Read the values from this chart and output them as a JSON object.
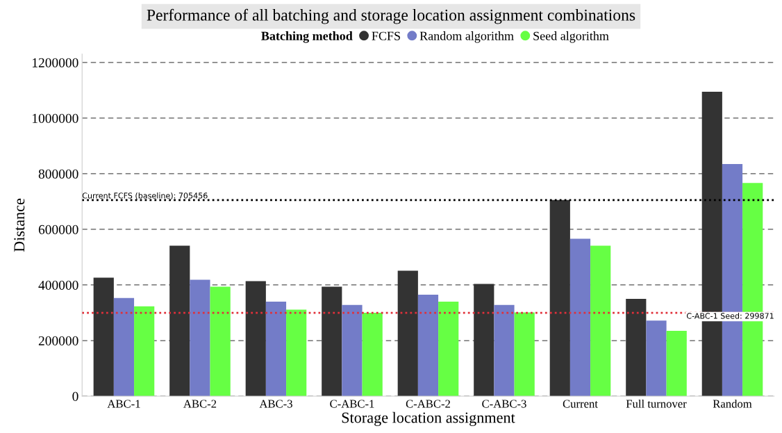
{
  "chart_data": {
    "type": "bar",
    "title": "Performance of all batching and storage location assignment combinations",
    "xlabel": "Storage location assignment",
    "ylabel": "Distance",
    "legend_title": "Batching method",
    "categories": [
      "ABC-1",
      "ABC-2",
      "ABC-3",
      "C-ABC-1",
      "C-ABC-2",
      "C-ABC-3",
      "Current",
      "Full turnover",
      "Random"
    ],
    "series": [
      {
        "name": "FCFS",
        "color": "#333333",
        "values": [
          426000,
          541000,
          414000,
          394000,
          451000,
          404000,
          705456,
          350000,
          1095000
        ]
      },
      {
        "name": "Random algorithm",
        "color": "#737cc8",
        "values": [
          353000,
          419000,
          340000,
          328000,
          365000,
          328000,
          566000,
          272000,
          835000
        ]
      },
      {
        "name": "Seed algorithm",
        "color": "#66ff44",
        "values": [
          323000,
          394000,
          311000,
          299871,
          340000,
          301000,
          541000,
          235000,
          767000
        ]
      }
    ],
    "ylim": [
      0,
      1230000
    ],
    "yticks": [
      0,
      200000,
      400000,
      600000,
      800000,
      1000000,
      1200000
    ],
    "ref_lines": [
      {
        "axis": "y",
        "value": 705456,
        "label": "Current FCFS (baseline): 705456",
        "color": "#000000",
        "line_style": "dotted"
      },
      {
        "axis": "y",
        "value": 299871,
        "label": "C-ABC-1 Seed: 299871",
        "color": "#e0303a",
        "line_style": "dotted"
      }
    ],
    "grid": "y",
    "legend": "top"
  }
}
